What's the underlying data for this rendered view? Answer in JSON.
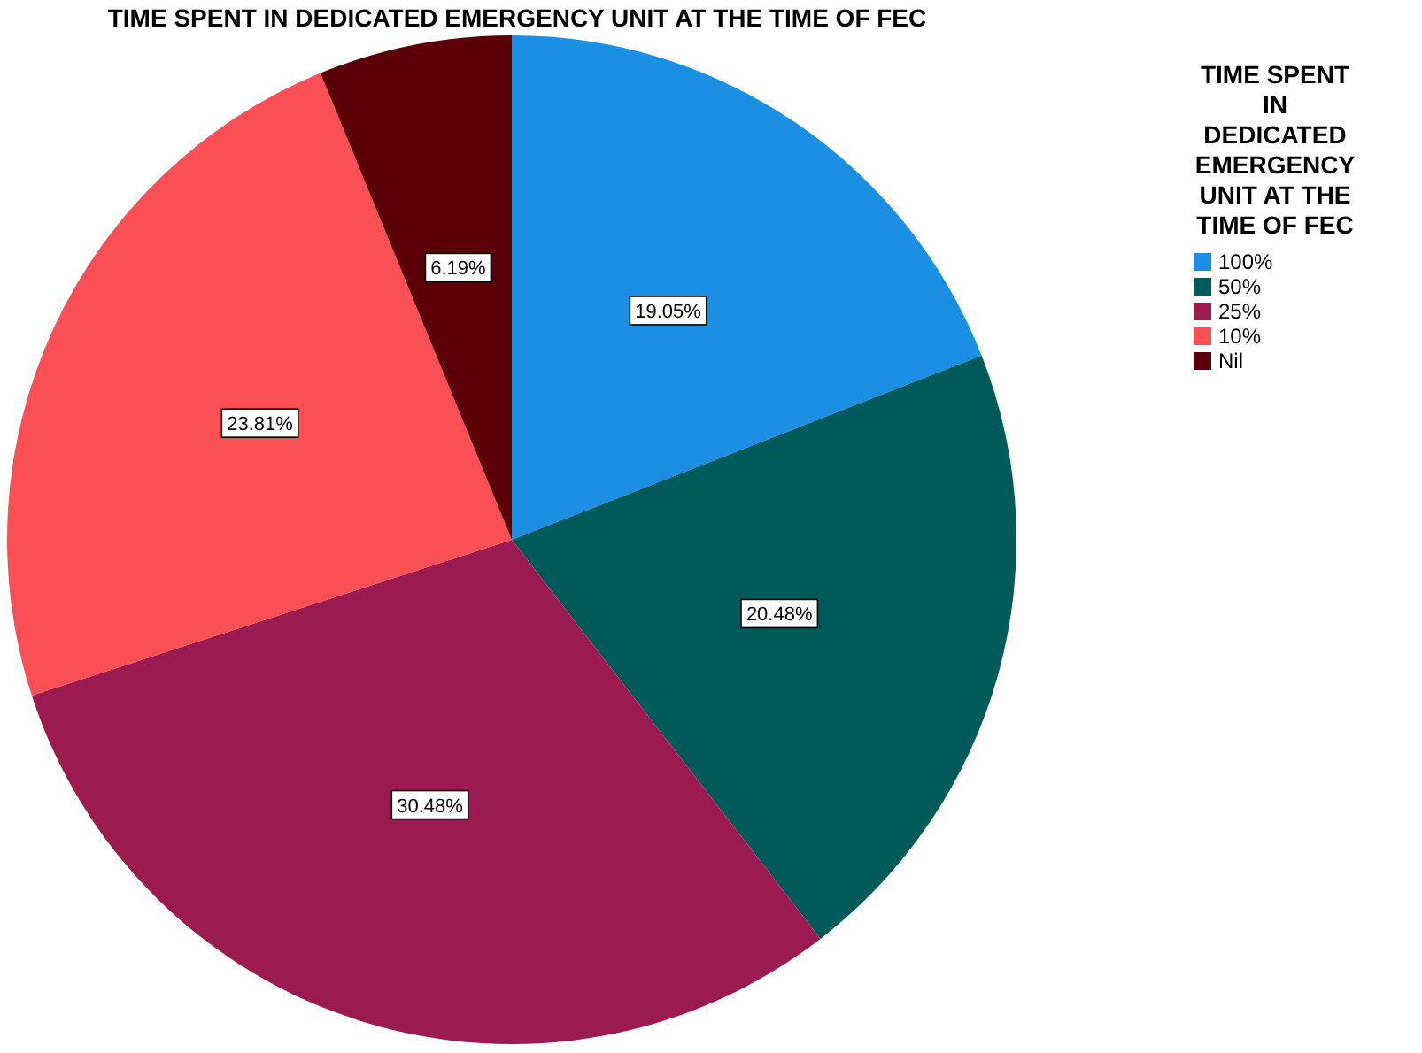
{
  "chart_data": {
    "type": "pie",
    "title": "TIME SPENT IN DEDICATED EMERGENCY UNIT AT THE TIME OF FEC",
    "legend_title": "TIME SPENT IN DEDICATED EMERGENCY UNIT AT THE TIME OF FEC",
    "categories": [
      "100%",
      "50%",
      "25%",
      "10%",
      "Nil"
    ],
    "values": [
      19.05,
      20.48,
      30.48,
      23.81,
      6.19
    ],
    "colors": [
      "#1a8fe3",
      "#005a5a",
      "#9b1a4f",
      "#fa4f55",
      "#5c0008"
    ],
    "value_labels": [
      "19.05%",
      "20.48%",
      "30.48%",
      "23.81%",
      "6.19%"
    ],
    "legend": "top right"
  }
}
